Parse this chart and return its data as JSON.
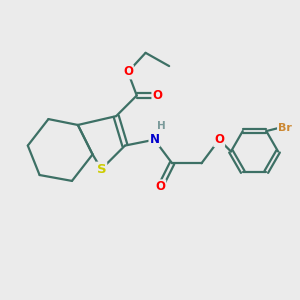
{
  "background_color": "#ebebeb",
  "bond_color": "#3d7065",
  "bond_width": 1.6,
  "atom_colors": {
    "O": "#ff0000",
    "N": "#0000cc",
    "S": "#cccc00",
    "Br": "#cc8833",
    "H": "#7a9a9a",
    "C": "#3d7065"
  },
  "font_size": 8.5,
  "figsize": [
    3.0,
    3.0
  ],
  "dpi": 100
}
